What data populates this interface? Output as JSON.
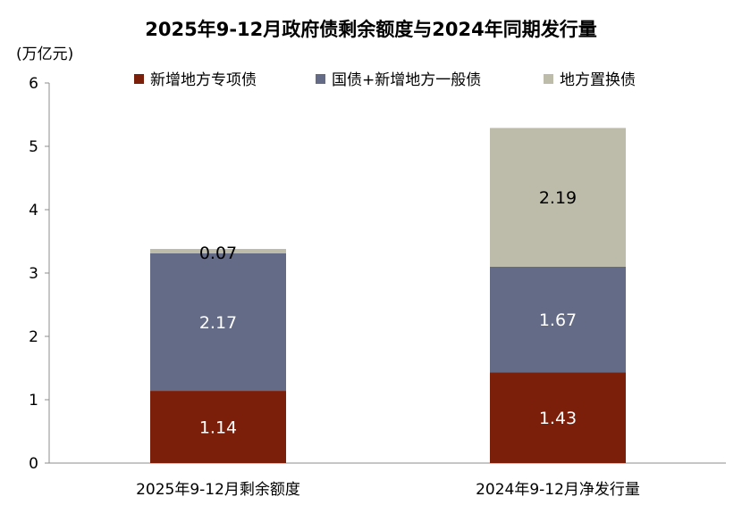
{
  "chart_data": {
    "type": "bar",
    "stacked": true,
    "title": "2025年9-12月政府债剩余额度与2024年同期发行量",
    "unit_label": "(万亿元)",
    "categories": [
      "2025年9-12月剩余额度",
      "2024年9-12月净发行量"
    ],
    "series": [
      {
        "name": "新增地方专项债",
        "values": [
          1.14,
          1.43
        ],
        "color": "#7B1F0B",
        "label_color": "#ffffff"
      },
      {
        "name": "国债+新增地方一般债",
        "values": [
          2.17,
          1.67
        ],
        "color": "#646B86",
        "label_color": "#ffffff"
      },
      {
        "name": "地方置换债",
        "values": [
          0.07,
          2.19
        ],
        "color": "#BDBBA9",
        "label_color": "#000000"
      }
    ],
    "ylim": [
      0,
      6
    ],
    "yticks": [
      0,
      1,
      2,
      3,
      4,
      5,
      6
    ],
    "grid": false,
    "legend_position": "top"
  }
}
